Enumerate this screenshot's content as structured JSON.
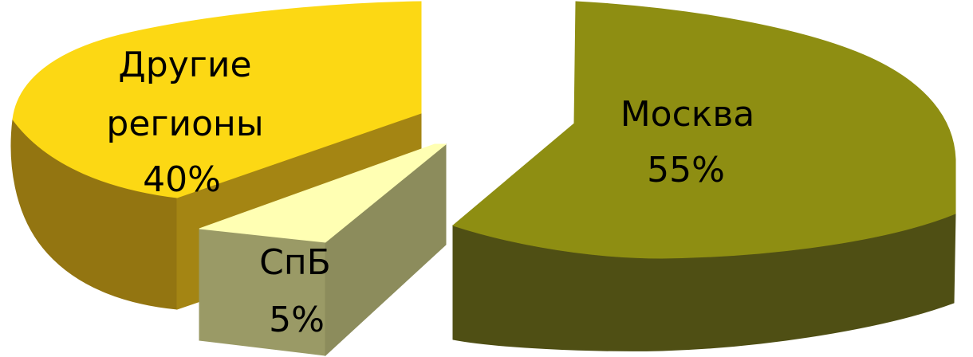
{
  "chart_data": {
    "type": "pie",
    "style": "3d-exploded",
    "title": "",
    "slices": [
      {
        "name": "Москва",
        "value": 55,
        "value_label": "55%",
        "color": "#8E8E12",
        "side_color": "#4F4F14"
      },
      {
        "name": "СпБ",
        "value": 5,
        "value_label": "5%",
        "color": "#FFFFB3",
        "side_color": "#90905E"
      },
      {
        "name": "Другие регионы",
        "name_lines": [
          "Другие",
          "регионы"
        ],
        "value": 40,
        "value_label": "40%",
        "color": "#FCD814",
        "side_color": "#937511"
      }
    ]
  }
}
